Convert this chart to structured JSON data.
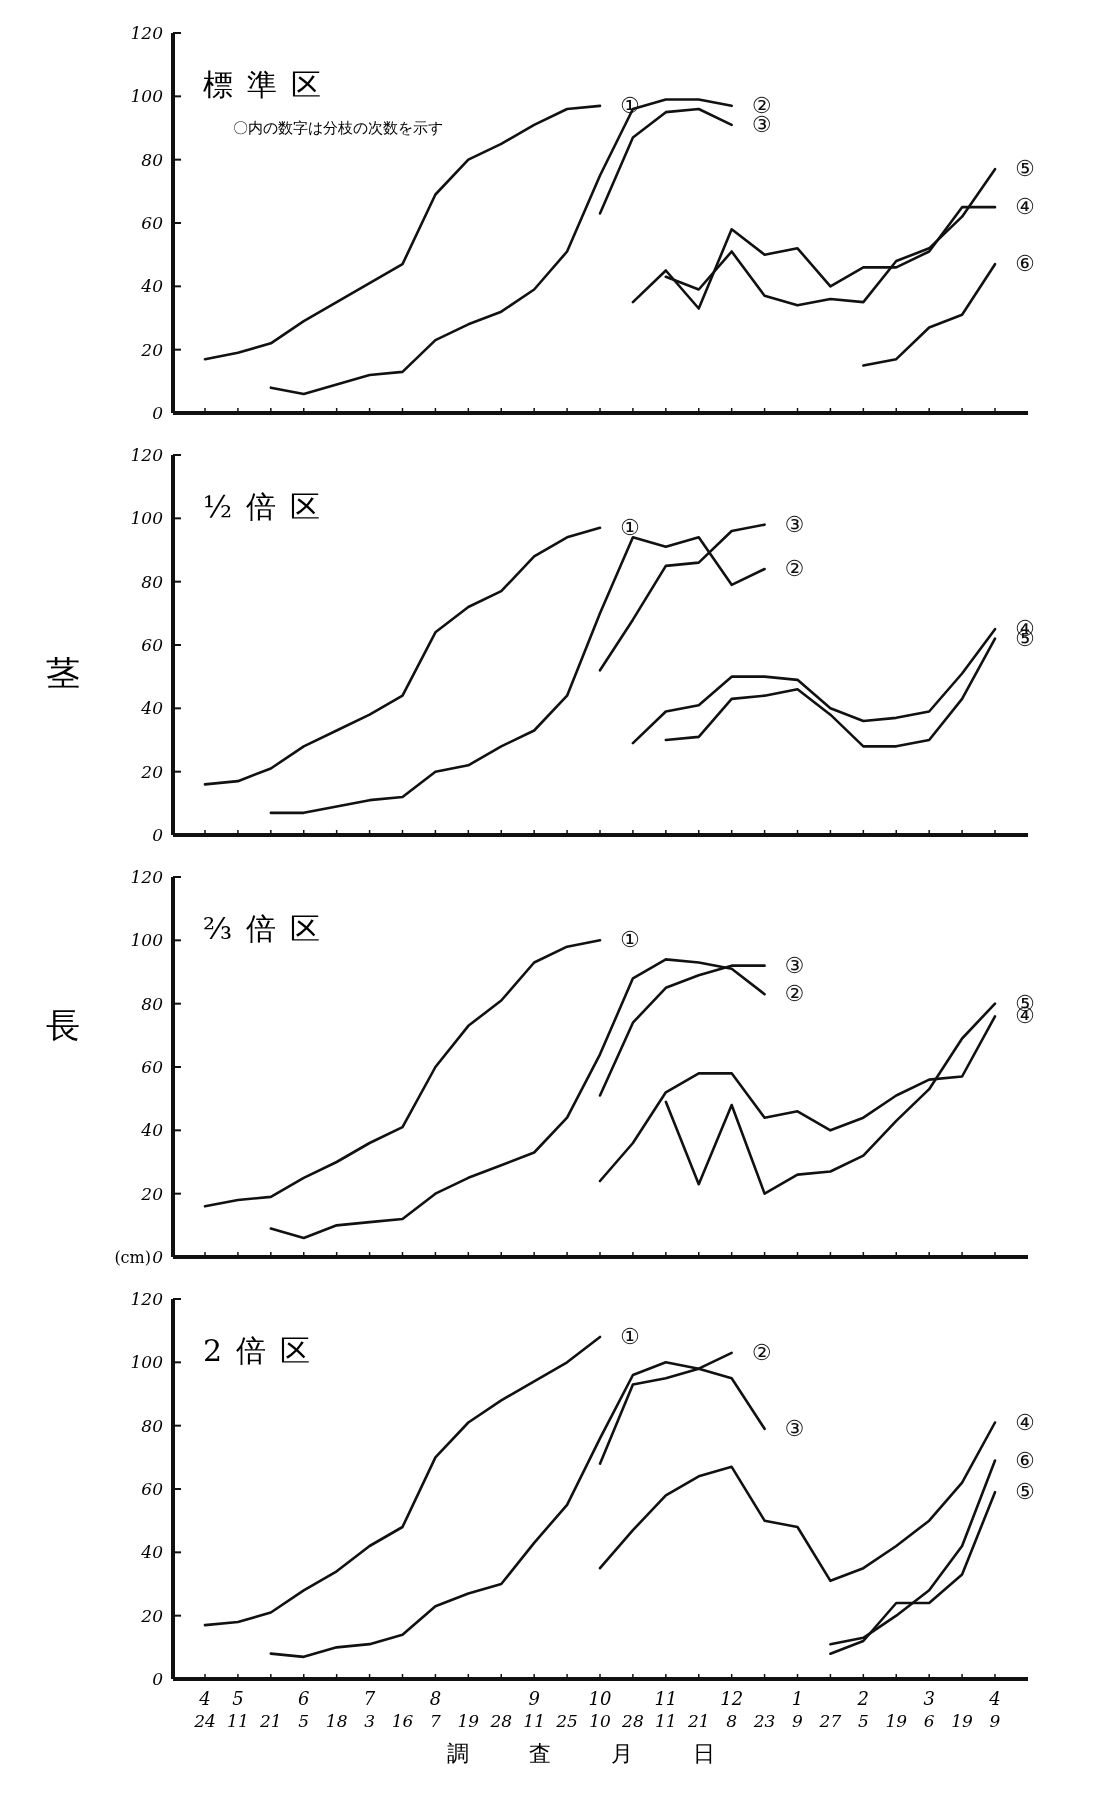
{
  "chart_data": [
    {
      "type": "line",
      "title": "標準区",
      "annotations": [
        "〇内の数字は分枝の次数を示す"
      ],
      "categories": [
        null,
        null,
        null,
        null,
        null,
        null,
        null,
        null,
        null,
        null,
        null,
        null,
        null,
        null,
        null,
        null,
        null,
        null,
        null,
        null,
        null,
        null,
        null,
        null,
        null
      ],
      "ylim": [
        0,
        120
      ],
      "yticks": [
        0,
        20,
        40,
        60,
        80,
        100,
        120
      ],
      "tick_labels": "y",
      "series": [
        {
          "name": "①",
          "color": "#111111",
          "values": [
            17,
            19,
            22,
            29,
            35,
            41,
            47,
            69,
            80,
            85,
            91,
            96,
            97,
            null,
            null,
            null,
            null,
            null,
            null,
            null,
            null,
            null,
            null,
            null,
            null
          ]
        },
        {
          "name": "②",
          "color": "#111111",
          "values": [
            null,
            null,
            8,
            6,
            9,
            12,
            13,
            23,
            28,
            32,
            39,
            51,
            75,
            96,
            99,
            99,
            97,
            null,
            null,
            null,
            null,
            null,
            null,
            null,
            null
          ]
        },
        {
          "name": "③",
          "color": "#111111",
          "values": [
            null,
            null,
            null,
            null,
            null,
            null,
            null,
            null,
            null,
            null,
            null,
            null,
            63,
            87,
            95,
            96,
            91,
            null,
            null,
            null,
            null,
            null,
            null,
            null,
            null
          ]
        },
        {
          "name": "④",
          "color": "#111111",
          "values": [
            null,
            null,
            null,
            null,
            null,
            null,
            null,
            null,
            null,
            null,
            null,
            null,
            null,
            35,
            45,
            33,
            58,
            50,
            52,
            40,
            46,
            46,
            51,
            65,
            65
          ]
        },
        {
          "name": "⑤",
          "color": "#111111",
          "values": [
            null,
            null,
            null,
            null,
            null,
            null,
            null,
            null,
            null,
            null,
            null,
            null,
            null,
            null,
            43,
            39,
            51,
            37,
            34,
            36,
            35,
            48,
            52,
            62,
            77
          ]
        },
        {
          "name": "⑥",
          "color": "#111111",
          "values": [
            null,
            null,
            null,
            null,
            null,
            null,
            null,
            null,
            null,
            null,
            null,
            null,
            null,
            null,
            null,
            null,
            null,
            null,
            null,
            null,
            15,
            17,
            27,
            31,
            47
          ]
        }
      ]
    },
    {
      "type": "line",
      "title": "½倍区",
      "ylabel": "茎",
      "categories": [
        null,
        null,
        null,
        null,
        null,
        null,
        null,
        null,
        null,
        null,
        null,
        null,
        null,
        null,
        null,
        null,
        null,
        null,
        null,
        null,
        null,
        null,
        null,
        null,
        null
      ],
      "ylim": [
        0,
        120
      ],
      "yticks": [
        0,
        20,
        40,
        60,
        80,
        100,
        120
      ],
      "tick_labels": "y",
      "series": [
        {
          "name": "①",
          "color": "#111111",
          "values": [
            16,
            17,
            21,
            28,
            33,
            38,
            44,
            64,
            72,
            77,
            88,
            94,
            97,
            null,
            null,
            null,
            null,
            null,
            null,
            null,
            null,
            null,
            null,
            null,
            null
          ]
        },
        {
          "name": "②",
          "color": "#111111",
          "values": [
            null,
            null,
            7,
            7,
            9,
            11,
            12,
            20,
            22,
            28,
            33,
            44,
            70,
            94,
            91,
            94,
            79,
            84,
            null,
            null,
            null,
            null,
            null,
            null,
            null
          ]
        },
        {
          "name": "③",
          "color": "#111111",
          "values": [
            null,
            null,
            null,
            null,
            null,
            null,
            null,
            null,
            null,
            null,
            null,
            null,
            52,
            68,
            85,
            86,
            96,
            98,
            null,
            null,
            null,
            null,
            null,
            null,
            null
          ]
        },
        {
          "name": "④",
          "color": "#111111",
          "values": [
            null,
            null,
            null,
            null,
            null,
            null,
            null,
            null,
            null,
            null,
            null,
            null,
            null,
            29,
            39,
            41,
            50,
            50,
            49,
            40,
            36,
            37,
            39,
            51,
            65
          ]
        },
        {
          "name": "⑤",
          "color": "#111111",
          "values": [
            null,
            null,
            null,
            null,
            null,
            null,
            null,
            null,
            null,
            null,
            null,
            null,
            null,
            null,
            30,
            31,
            43,
            44,
            46,
            38,
            28,
            28,
            30,
            43,
            62
          ]
        }
      ]
    },
    {
      "type": "line",
      "title": "⅔倍区",
      "ylabel": "長",
      "annotations": [
        "(cm)"
      ],
      "categories": [
        null,
        null,
        null,
        null,
        null,
        null,
        null,
        null,
        null,
        null,
        null,
        null,
        null,
        null,
        null,
        null,
        null,
        null,
        null,
        null,
        null,
        null,
        null,
        null,
        null
      ],
      "ylim": [
        0,
        120
      ],
      "yticks": [
        0,
        20,
        40,
        60,
        80,
        100,
        120
      ],
      "tick_labels": "y",
      "series": [
        {
          "name": "①",
          "color": "#111111",
          "values": [
            16,
            18,
            19,
            25,
            30,
            36,
            41,
            60,
            73,
            81,
            93,
            98,
            100,
            null,
            null,
            null,
            null,
            null,
            null,
            null,
            null,
            null,
            null,
            null,
            null
          ]
        },
        {
          "name": "②",
          "color": "#111111",
          "values": [
            null,
            null,
            9,
            6,
            10,
            11,
            12,
            20,
            25,
            29,
            33,
            44,
            64,
            88,
            94,
            93,
            91,
            83,
            null,
            null,
            null,
            null,
            null,
            null,
            null
          ]
        },
        {
          "name": "③",
          "color": "#111111",
          "values": [
            null,
            null,
            null,
            null,
            null,
            null,
            null,
            null,
            null,
            null,
            null,
            null,
            51,
            74,
            85,
            89,
            92,
            92,
            null,
            null,
            null,
            null,
            null,
            null,
            null
          ]
        },
        {
          "name": "④",
          "color": "#111111",
          "values": [
            null,
            null,
            null,
            null,
            null,
            null,
            null,
            null,
            null,
            null,
            null,
            null,
            24,
            36,
            52,
            58,
            58,
            44,
            46,
            40,
            44,
            51,
            56,
            57,
            76
          ]
        },
        {
          "name": "⑤",
          "color": "#111111",
          "values": [
            null,
            null,
            null,
            null,
            null,
            null,
            null,
            null,
            null,
            null,
            null,
            null,
            null,
            null,
            49,
            23,
            48,
            20,
            26,
            27,
            32,
            43,
            53,
            69,
            80
          ]
        }
      ]
    },
    {
      "type": "line",
      "title": "2倍区",
      "xlabel": "調査月日",
      "categories": [
        "4\n24",
        "5\n11",
        "21",
        "6\n5",
        "18",
        "7\n3",
        "16",
        "8\n7",
        "19",
        "28",
        "9\n11",
        "25",
        "10\n10",
        "28",
        "11\n11",
        "21",
        "12\n8",
        "23",
        "1\n9",
        "27",
        "2\n5",
        "19",
        "3\n6",
        "19",
        "4\n9"
      ],
      "ylim": [
        0,
        120
      ],
      "yticks": [
        0,
        20,
        40,
        60,
        80,
        100,
        120
      ],
      "series": [
        {
          "name": "①",
          "color": "#111111",
          "values": [
            17,
            18,
            21,
            28,
            34,
            42,
            48,
            70,
            81,
            88,
            94,
            100,
            108,
            null,
            null,
            null,
            null,
            null,
            null,
            null,
            null,
            null,
            null,
            null,
            null
          ]
        },
        {
          "name": "②",
          "color": "#111111",
          "values": [
            null,
            null,
            null,
            null,
            null,
            null,
            null,
            null,
            null,
            null,
            null,
            null,
            68,
            93,
            95,
            98,
            103,
            null,
            null,
            null,
            null,
            null,
            null,
            null,
            null
          ]
        },
        {
          "name": "③",
          "color": "#111111",
          "values": [
            null,
            null,
            8,
            7,
            10,
            11,
            14,
            23,
            27,
            30,
            43,
            55,
            76,
            96,
            100,
            98,
            95,
            79,
            null,
            null,
            null,
            null,
            null,
            null,
            null
          ]
        },
        {
          "name": "④",
          "color": "#111111",
          "values": [
            null,
            null,
            null,
            null,
            null,
            null,
            null,
            null,
            null,
            null,
            null,
            null,
            35,
            47,
            58,
            64,
            67,
            50,
            48,
            31,
            35,
            42,
            50,
            62,
            81
          ]
        },
        {
          "name": "⑤",
          "color": "#111111",
          "values": [
            null,
            null,
            null,
            null,
            null,
            null,
            null,
            null,
            null,
            null,
            null,
            null,
            null,
            null,
            null,
            null,
            null,
            null,
            null,
            8,
            12,
            24,
            24,
            33,
            59
          ]
        },
        {
          "name": "⑥",
          "color": "#111111",
          "values": [
            null,
            null,
            null,
            null,
            null,
            null,
            null,
            null,
            null,
            null,
            null,
            null,
            null,
            null,
            null,
            null,
            null,
            null,
            null,
            11,
            13,
            20,
            28,
            42,
            69
          ]
        }
      ]
    }
  ]
}
